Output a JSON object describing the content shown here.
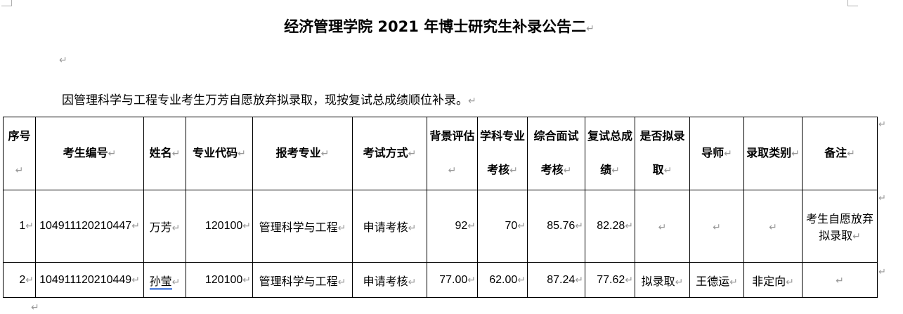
{
  "document": {
    "title": "经济管理学院 2021 年博士研究生补录公告二",
    "paragraph_mark": "↵",
    "intro": "因管理科学与工程专业考生万芳自愿放弃拟录取，现按复试总成绩顺位补录。"
  },
  "table": {
    "headers": [
      "序号",
      "考生编号",
      "姓名",
      "专业代码",
      "报考专业",
      "考试方式",
      "背景评估",
      "学科专业考核",
      "综合面试考核",
      "复试总成绩",
      "是否拟录取",
      "导师",
      "录取类别",
      "备注"
    ],
    "rows": [
      [
        "1",
        "104911120210447",
        "万芳",
        "120100",
        "管理科学与工程",
        "申请考核",
        "92",
        "70",
        "85.76",
        "82.28",
        "",
        "",
        "",
        "考生自愿放弃拟录取"
      ],
      [
        "2",
        "104911120210449",
        "孙莹",
        "120100",
        "管理科学与工程",
        "申请考核",
        "77.00",
        "62.00",
        "87.24",
        "77.62",
        "拟录取",
        "王德运",
        "非定向",
        ""
      ]
    ]
  }
}
